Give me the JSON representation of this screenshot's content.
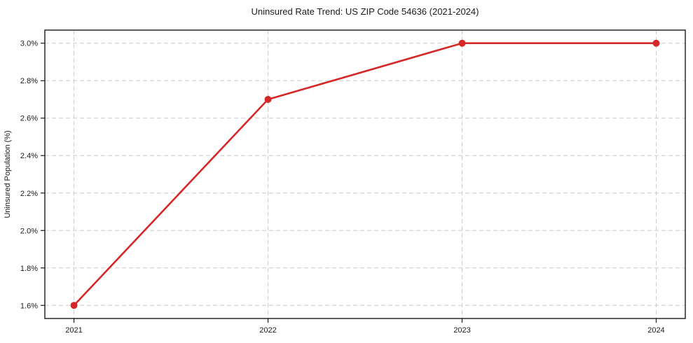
{
  "figure": {
    "title": "Uninsured Rate Trend: US ZIP Code 54636 (2021-2024)"
  },
  "chart_data": {
    "type": "line",
    "title": "Uninsured Rate Trend: US ZIP Code 54636 (2021-2024)",
    "xlabel": "",
    "ylabel": "Uninsured Population (%)",
    "x": [
      2021,
      2022,
      2023,
      2024
    ],
    "x_tick_labels": [
      "2021",
      "2022",
      "2023",
      "2024"
    ],
    "series": [
      {
        "name": "",
        "values": [
          1.6,
          2.7,
          3.0,
          3.0
        ]
      }
    ],
    "y_ticks": [
      1.6,
      1.8,
      2.0,
      2.2,
      2.4,
      2.6,
      2.8,
      3.0
    ],
    "y_tick_labels": [
      "1.6%",
      "1.8%",
      "2.0%",
      "2.2%",
      "2.4%",
      "2.6%",
      "2.8%",
      "3.0%"
    ],
    "xlim": [
      2020.85,
      2024.15
    ],
    "ylim": [
      1.53,
      3.07
    ],
    "grid": true,
    "grid_style": "dashed",
    "legend_position": "none",
    "colors": {
      "line": "#d62728",
      "marker": "#d62728",
      "grid": "#cccccc",
      "spine": "#1a1a1a",
      "text": "#1a1a1a",
      "background": "#ffffff"
    }
  }
}
